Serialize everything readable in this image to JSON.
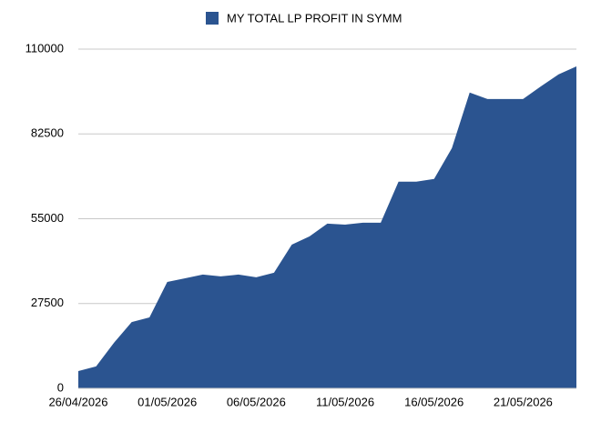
{
  "chart_data": {
    "type": "area",
    "legend_position": "top",
    "series": [
      {
        "name": "MY TOTAL LP PROFIT IN SYMM",
        "color": "#2b5490",
        "values": [
          5600,
          7100,
          14750,
          21500,
          23000,
          34500,
          35700,
          36900,
          36300,
          36900,
          36000,
          37500,
          46600,
          49300,
          53400,
          53100,
          53700,
          53700,
          67000,
          67000,
          67900,
          77900,
          95900,
          93800,
          93800,
          93800,
          97900,
          101800,
          104400
        ]
      }
    ],
    "categories": [
      "26/04/2026",
      null,
      null,
      null,
      null,
      "01/05/2026",
      null,
      null,
      null,
      null,
      "06/05/2026",
      null,
      null,
      null,
      null,
      "11/05/2026",
      null,
      null,
      null,
      null,
      "16/05/2026",
      null,
      null,
      null,
      null,
      "21/05/2026",
      null,
      null,
      null
    ],
    "ylim": [
      0,
      110000
    ],
    "yticks": [
      0,
      27500,
      55000,
      82500,
      110000
    ],
    "grid": true
  }
}
